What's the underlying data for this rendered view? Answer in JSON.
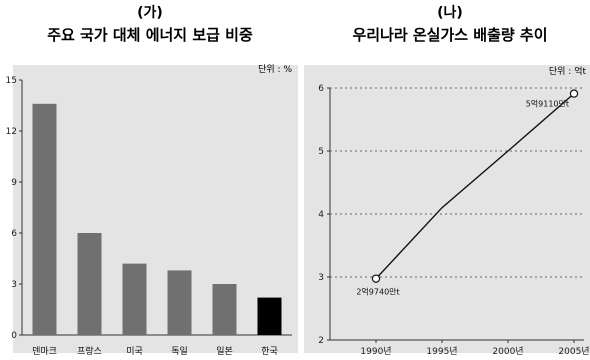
{
  "chart_data": [
    {
      "type": "bar",
      "label": "(가)",
      "title": "주요 국가 대체 에너지 보급 비중",
      "unit": "단위 : %",
      "categories": [
        "덴마크",
        "프랑스",
        "미국",
        "독일",
        "일본",
        "한국"
      ],
      "values": [
        13.6,
        6.0,
        4.2,
        3.8,
        3.0,
        2.2
      ],
      "ylim": [
        0,
        15
      ],
      "yticks": [
        0,
        3,
        6,
        9,
        12,
        15
      ],
      "grid": false,
      "background": "#e4e4e4",
      "colors": {
        "default": "#707070",
        "highlight": "#000000",
        "highlight_category": "한국"
      }
    },
    {
      "type": "line",
      "label": "(나)",
      "title": "우리나라 온실가스 배출량 추이",
      "unit": "단위 : 억t",
      "x": [
        1990,
        1995,
        2000,
        2005
      ],
      "xtick_labels": [
        "1990년",
        "1995년",
        "2000년",
        "2005년"
      ],
      "series": [
        {
          "values": [
            2.974,
            4.1,
            5.0,
            5.911
          ]
        }
      ],
      "annotations": [
        {
          "x": 1990,
          "text": "2억9740만t"
        },
        {
          "x": 2005,
          "text": "5억9110만t"
        }
      ],
      "ylim": [
        2,
        6
      ],
      "yticks": [
        2,
        3,
        4,
        5,
        6
      ],
      "grid": "dotted-horizontal",
      "background": "#e4e4e4"
    }
  ]
}
